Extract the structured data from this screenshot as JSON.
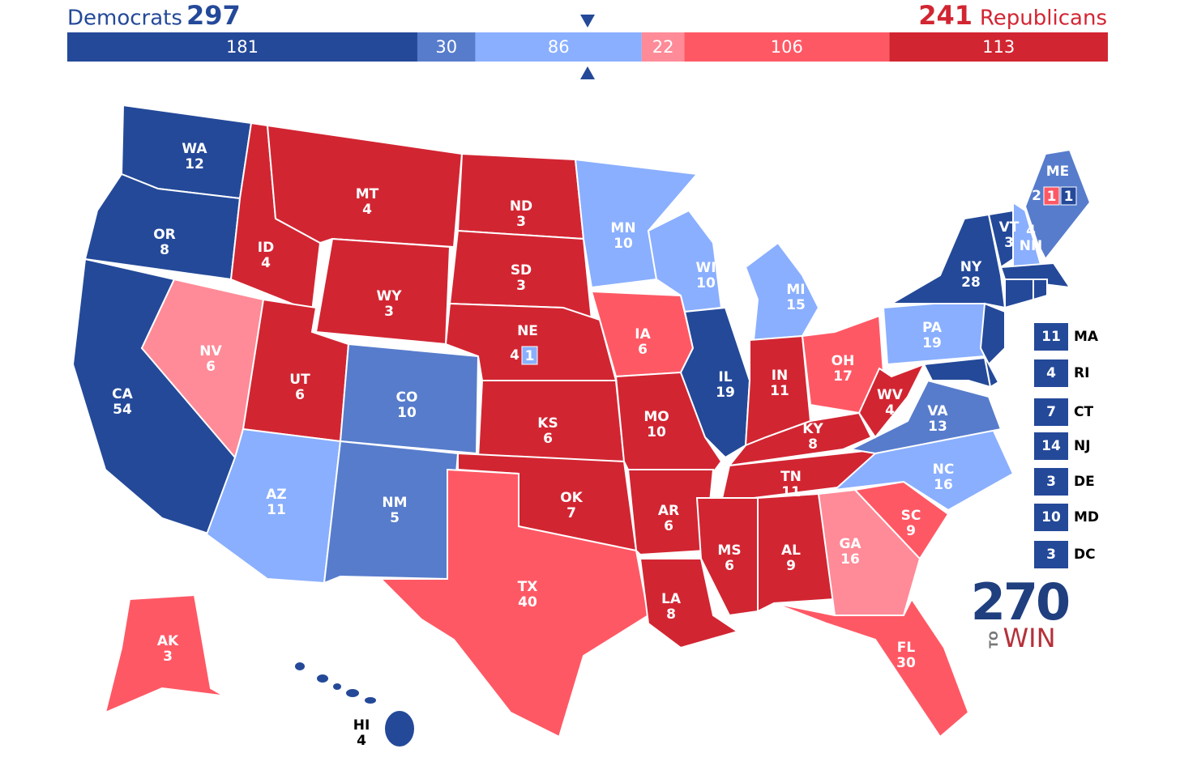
{
  "header": {
    "dem_label": "Democrats",
    "dem_total": "297",
    "rep_total": "241",
    "rep_label": "Republicans"
  },
  "bar": {
    "segments": [
      {
        "value": 181,
        "color": "#244999"
      },
      {
        "value": 30,
        "color": "#577ccc"
      },
      {
        "value": 86,
        "color": "#8aafff"
      },
      {
        "value": 22,
        "color": "#ff8b98"
      },
      {
        "value": 106,
        "color": "#ff5865"
      },
      {
        "value": 113,
        "color": "#d22532"
      }
    ]
  },
  "states": [
    {
      "abbr": "WA",
      "ev": "12",
      "color": "#244999"
    },
    {
      "abbr": "OR",
      "ev": "8",
      "color": "#244999"
    },
    {
      "abbr": "CA",
      "ev": "54",
      "color": "#244999"
    },
    {
      "abbr": "NV",
      "ev": "6",
      "color": "#ff8b98"
    },
    {
      "abbr": "ID",
      "ev": "4",
      "color": "#d22532"
    },
    {
      "abbr": "MT",
      "ev": "4",
      "color": "#d22532"
    },
    {
      "abbr": "WY",
      "ev": "3",
      "color": "#d22532"
    },
    {
      "abbr": "UT",
      "ev": "6",
      "color": "#d22532"
    },
    {
      "abbr": "CO",
      "ev": "10",
      "color": "#577ccc"
    },
    {
      "abbr": "AZ",
      "ev": "11",
      "color": "#8aafff"
    },
    {
      "abbr": "NM",
      "ev": "5",
      "color": "#577ccc"
    },
    {
      "abbr": "ND",
      "ev": "3",
      "color": "#d22532"
    },
    {
      "abbr": "SD",
      "ev": "3",
      "color": "#d22532"
    },
    {
      "abbr": "NE",
      "ev": "4",
      "color": "#d22532",
      "districts": [
        {
          "ev": "1",
          "color": "#8aafff"
        }
      ]
    },
    {
      "abbr": "KS",
      "ev": "6",
      "color": "#d22532"
    },
    {
      "abbr": "OK",
      "ev": "7",
      "color": "#d22532"
    },
    {
      "abbr": "TX",
      "ev": "40",
      "color": "#ff5865"
    },
    {
      "abbr": "MN",
      "ev": "10",
      "color": "#8aafff"
    },
    {
      "abbr": "IA",
      "ev": "6",
      "color": "#ff5865"
    },
    {
      "abbr": "MO",
      "ev": "10",
      "color": "#d22532"
    },
    {
      "abbr": "AR",
      "ev": "6",
      "color": "#d22532"
    },
    {
      "abbr": "LA",
      "ev": "8",
      "color": "#d22532"
    },
    {
      "abbr": "WI",
      "ev": "10",
      "color": "#8aafff"
    },
    {
      "abbr": "IL",
      "ev": "19",
      "color": "#244999"
    },
    {
      "abbr": "MI",
      "ev": "15",
      "color": "#8aafff"
    },
    {
      "abbr": "IN",
      "ev": "11",
      "color": "#d22532"
    },
    {
      "abbr": "OH",
      "ev": "17",
      "color": "#ff5865"
    },
    {
      "abbr": "KY",
      "ev": "8",
      "color": "#d22532"
    },
    {
      "abbr": "TN",
      "ev": "11",
      "color": "#d22532"
    },
    {
      "abbr": "MS",
      "ev": "6",
      "color": "#d22532"
    },
    {
      "abbr": "AL",
      "ev": "9",
      "color": "#d22532"
    },
    {
      "abbr": "GA",
      "ev": "16",
      "color": "#ff8b98"
    },
    {
      "abbr": "FL",
      "ev": "30",
      "color": "#ff5865"
    },
    {
      "abbr": "SC",
      "ev": "9",
      "color": "#ff5865"
    },
    {
      "abbr": "NC",
      "ev": "16",
      "color": "#8aafff"
    },
    {
      "abbr": "VA",
      "ev": "13",
      "color": "#577ccc"
    },
    {
      "abbr": "WV",
      "ev": "4",
      "color": "#d22532"
    },
    {
      "abbr": "PA",
      "ev": "19",
      "color": "#8aafff"
    },
    {
      "abbr": "NY",
      "ev": "28",
      "color": "#244999"
    },
    {
      "abbr": "VT",
      "ev": "3",
      "color": "#244999"
    },
    {
      "abbr": "NH",
      "ev": "4",
      "color": "#8aafff"
    },
    {
      "abbr": "ME",
      "ev": "2",
      "color": "#577ccc",
      "districts": [
        {
          "ev": "1",
          "color": "#ff5865"
        },
        {
          "ev": "1",
          "color": "#244999"
        }
      ]
    },
    {
      "abbr": "AK",
      "ev": "3",
      "color": "#ff5865"
    },
    {
      "abbr": "HI",
      "ev": "4",
      "color": "#244999"
    }
  ],
  "small_states": [
    {
      "abbr": "MA",
      "ev": "11",
      "color": "#244999"
    },
    {
      "abbr": "RI",
      "ev": "4",
      "color": "#244999"
    },
    {
      "abbr": "CT",
      "ev": "7",
      "color": "#244999"
    },
    {
      "abbr": "NJ",
      "ev": "14",
      "color": "#244999"
    },
    {
      "abbr": "DE",
      "ev": "3",
      "color": "#244999"
    },
    {
      "abbr": "MD",
      "ev": "10",
      "color": "#244999"
    },
    {
      "abbr": "DC",
      "ev": "3",
      "color": "#244999"
    }
  ],
  "logo": {
    "number": "270",
    "small": "TO",
    "word": "WIN"
  }
}
